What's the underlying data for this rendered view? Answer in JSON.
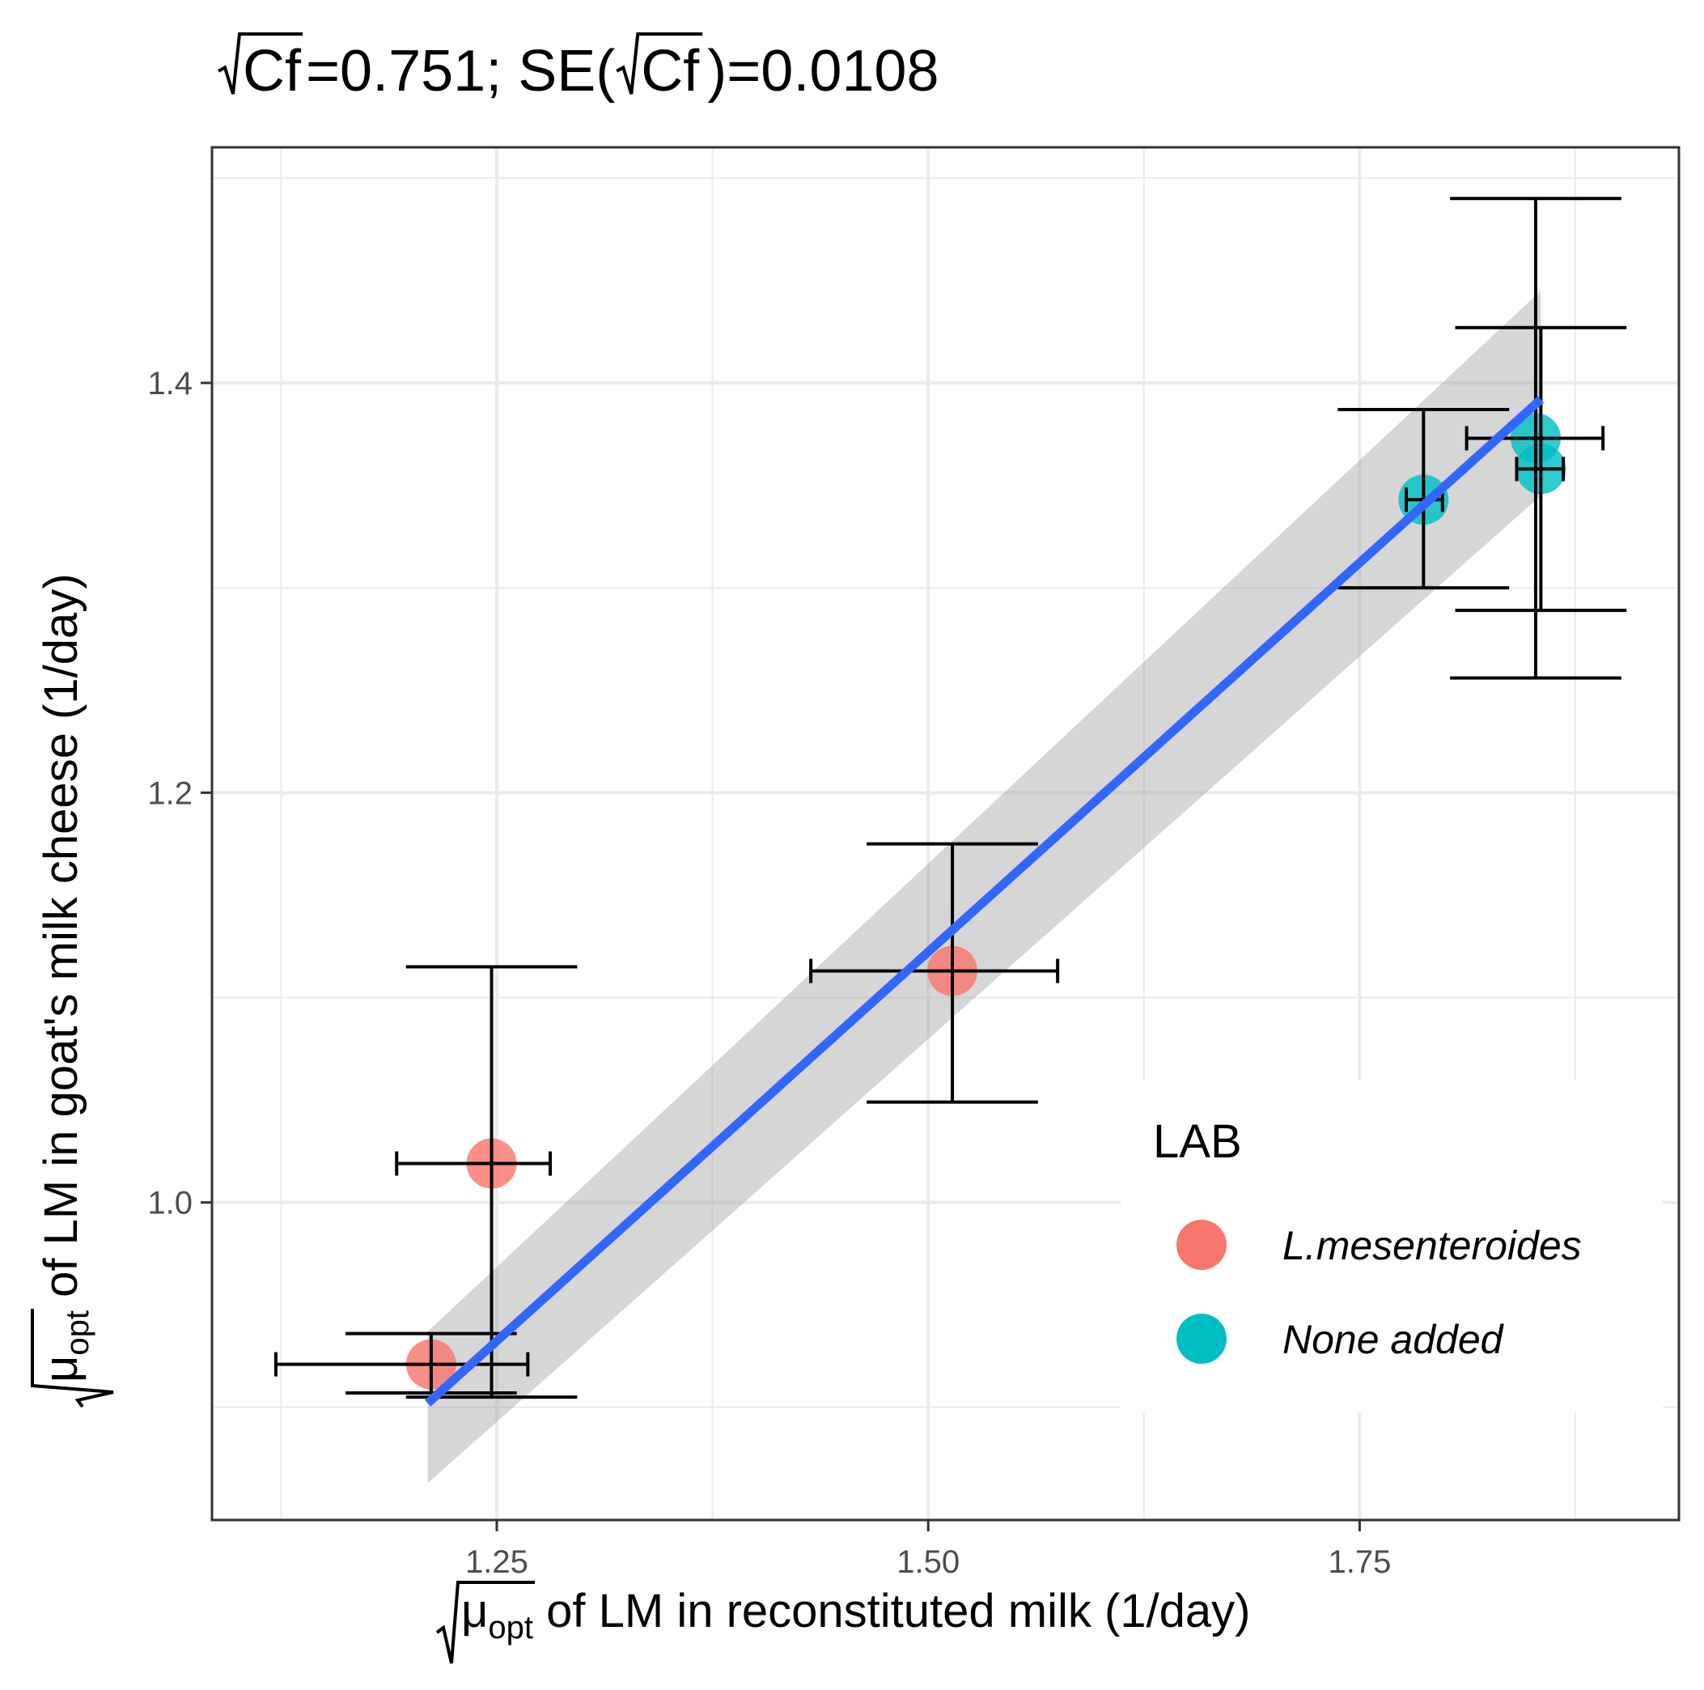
{
  "chart_data": {
    "type": "scatter",
    "title": {
      "parts": [
        "Cf",
        "=0.751; SE(",
        "Cf",
        ")=0.0108"
      ]
    },
    "xlabel": {
      "symbol": "μ",
      "subscript": "opt",
      "text": " of LM in reconstituted milk (1/day)"
    },
    "ylabel": {
      "symbol": "μ",
      "subscript": "opt",
      "text": " of LM in goat's milk cheese (1/day)"
    },
    "xlim": [
      1.085,
      1.935
    ],
    "ylim": [
      0.845,
      1.515
    ],
    "x_ticks": [
      1.25,
      1.5,
      1.75
    ],
    "x_tick_labels": [
      "1.25",
      "1.50",
      "1.75"
    ],
    "x_minor": [
      1.125,
      1.375,
      1.625,
      1.875
    ],
    "y_ticks": [
      1.0,
      1.2,
      1.4
    ],
    "y_tick_labels": [
      "1.0",
      "1.2",
      "1.4"
    ],
    "y_minor": [
      0.9,
      1.1,
      1.3,
      1.5
    ],
    "grid": true,
    "legend": {
      "title": "LAB",
      "placement": "bottom-right",
      "entries": [
        {
          "label": "L.mesenteroides",
          "color": "#F8766D"
        },
        {
          "label": "None added",
          "color": "#00BFC4"
        }
      ]
    },
    "series": [
      {
        "name": "L.mesenteroides",
        "color": "#F8766D",
        "points": [
          {
            "x": 1.212,
            "y": 0.921,
            "xmin": 1.122,
            "xmax": 1.268,
            "ymin": 0.907,
            "ymax": 0.936
          },
          {
            "x": 1.247,
            "y": 1.019,
            "xmin": 1.192,
            "xmax": 1.281,
            "ymin": 0.905,
            "ymax": 1.115
          },
          {
            "x": 1.514,
            "y": 1.113,
            "xmin": 1.432,
            "xmax": 1.575,
            "ymin": 1.049,
            "ymax": 1.175
          }
        ]
      },
      {
        "name": "None added",
        "color": "#00BFC4",
        "points": [
          {
            "x": 1.787,
            "y": 1.343,
            "xmin": 1.777,
            "xmax": 1.798,
            "ymin": 1.3,
            "ymax": 1.387
          },
          {
            "x": 1.852,
            "y": 1.373,
            "xmin": 1.812,
            "xmax": 1.891,
            "ymin": 1.256,
            "ymax": 1.49
          },
          {
            "x": 1.855,
            "y": 1.358,
            "xmin": 1.841,
            "xmax": 1.868,
            "ymin": 1.289,
            "ymax": 1.427
          }
        ]
      }
    ],
    "fit_line": {
      "color": "#3366FF",
      "x": [
        1.21,
        1.855
      ],
      "y": [
        0.902,
        1.392
      ],
      "ribbon": {
        "color": "#999999",
        "x": [
          1.21,
          1.855
        ],
        "lower": [
          0.863,
          1.345
        ],
        "upper": [
          0.937,
          1.445
        ]
      }
    }
  }
}
